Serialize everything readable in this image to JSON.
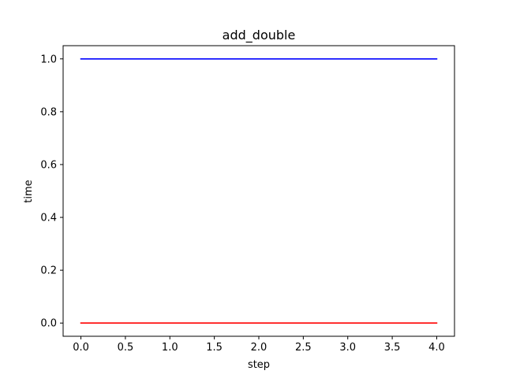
{
  "chart_data": {
    "type": "line",
    "title": "add_double",
    "xlabel": "step",
    "ylabel": "time",
    "xlim": [
      -0.2,
      4.2
    ],
    "ylim": [
      -0.05,
      1.05
    ],
    "xticks": [
      0.0,
      0.5,
      1.0,
      1.5,
      2.0,
      2.5,
      3.0,
      3.5,
      4.0
    ],
    "xtick_labels": [
      "0.0",
      "0.5",
      "1.0",
      "1.5",
      "2.0",
      "2.5",
      "3.0",
      "3.5",
      "4.0"
    ],
    "yticks": [
      0.0,
      0.2,
      0.4,
      0.6,
      0.8,
      1.0
    ],
    "ytick_labels": [
      "0.0",
      "0.2",
      "0.4",
      "0.6",
      "0.8",
      "1.0"
    ],
    "grid": false,
    "series": [
      {
        "color": "#0000ff",
        "x": [
          0,
          1,
          2,
          3,
          4
        ],
        "y": [
          1.0,
          1.0,
          1.0,
          1.0,
          1.0
        ]
      },
      {
        "color": "#ff0000",
        "x": [
          0,
          1,
          2,
          3,
          4
        ],
        "y": [
          0.0,
          0.0,
          0.0,
          0.0,
          0.0
        ]
      }
    ]
  }
}
